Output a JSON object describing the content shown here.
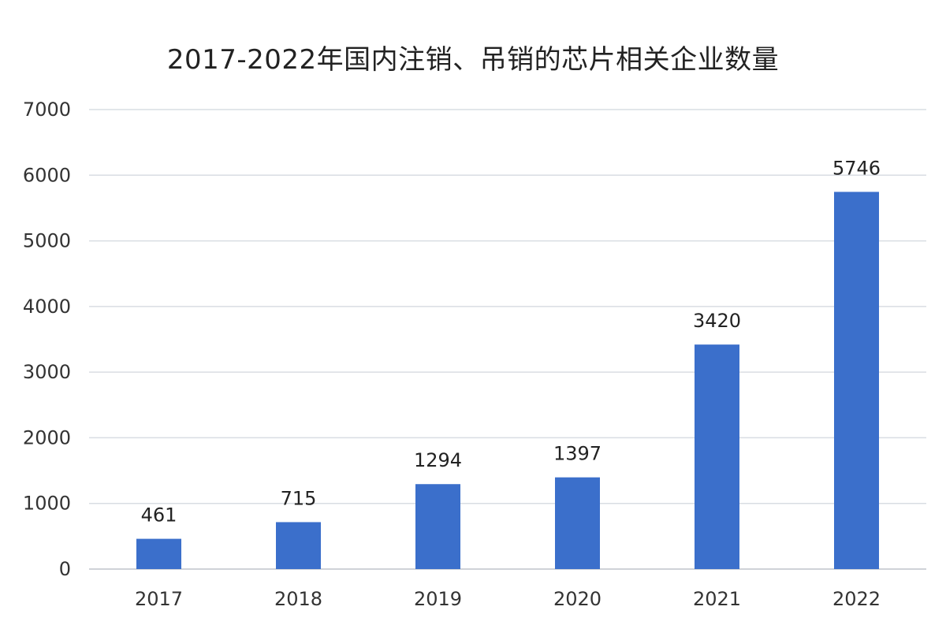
{
  "chart_data": {
    "type": "bar",
    "title": "2017-2022年国内注销、吊销的芯片相关企业数量",
    "xlabel": "",
    "ylabel": "",
    "categories": [
      "2017",
      "2018",
      "2019",
      "2020",
      "2021",
      "2022"
    ],
    "series": [
      {
        "values": [
          461,
          715,
          1294,
          1397,
          3420,
          5746
        ]
      }
    ],
    "data_labels": [
      "461",
      "715",
      "1294",
      "1397",
      "3420",
      "5746"
    ],
    "y_ticks": [
      "0",
      "1000",
      "2000",
      "3000",
      "4000",
      "5000",
      "6000",
      "7000"
    ],
    "ylim": [
      0,
      7000
    ],
    "grid": true,
    "legend": "none",
    "colors": {
      "bar": "#3b6fcb",
      "grid": "#d9dde3",
      "axis": "#bfc4cc"
    }
  }
}
